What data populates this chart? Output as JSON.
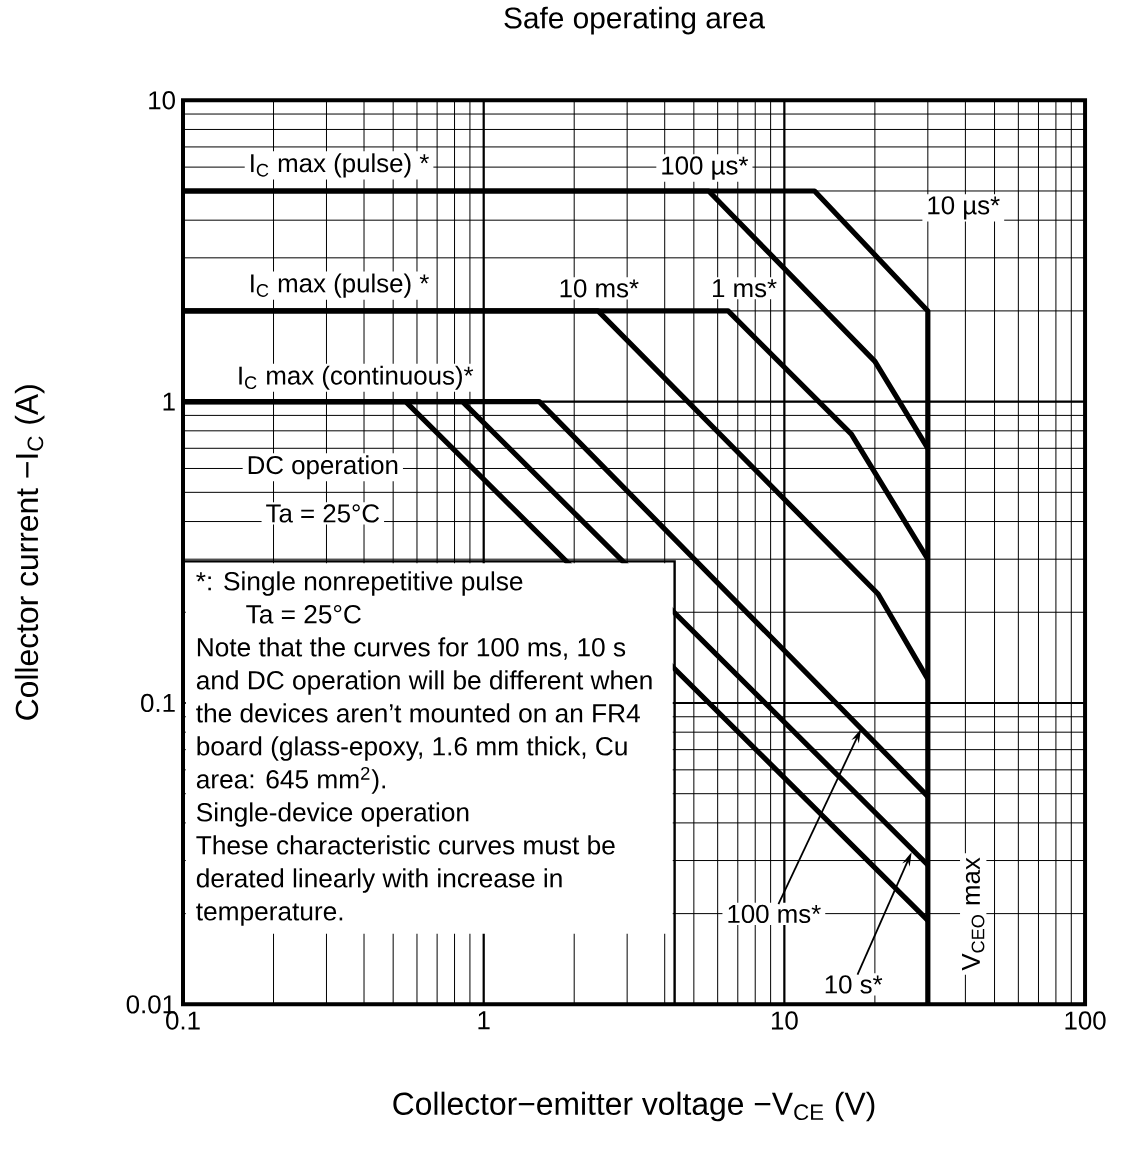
{
  "chart_data": {
    "type": "line",
    "title": "Safe operating area",
    "xlabel": "Collector−emitter voltage   −V$_{CE}$   (V)",
    "ylabel": "Collector current   −I$_{C}$   (A)",
    "log": "xy",
    "grid": true,
    "xlim": [
      0.1,
      100
    ],
    "ylim": [
      0.01,
      10
    ],
    "xticks": [
      0.1,
      1,
      10,
      100
    ],
    "yticks": [
      0.01,
      0.1,
      1,
      10
    ],
    "series": [
      {
        "name": "10 µs*",
        "color": "#000000",
        "x": [
          0.1,
          12.6,
          30,
          30
        ],
        "values": [
          5,
          5,
          2,
          0.01
        ]
      },
      {
        "name": "100 µs*",
        "color": "#000000",
        "x": [
          0.1,
          5.6,
          20,
          30
        ],
        "values": [
          5,
          5,
          1.36,
          0.7
        ]
      },
      {
        "name": "1 ms*",
        "color": "#000000",
        "x": [
          0.1,
          6.5,
          16.7,
          30
        ],
        "values": [
          2,
          2,
          0.78,
          0.3
        ]
      },
      {
        "name": "10 ms*",
        "color": "#000000",
        "x": [
          0.1,
          2.4,
          20.5,
          30
        ],
        "values": [
          2,
          2,
          0.23,
          0.12
        ]
      },
      {
        "color": "#000000",
        "x": [
          0.1,
          1.53,
          30
        ],
        "values": [
          1,
          1,
          0.049
        ]
      },
      {
        "color": "#000000",
        "x": [
          0.1,
          0.85,
          30
        ],
        "values": [
          1,
          1,
          0.029
        ]
      },
      {
        "name": "DC operation",
        "color": "#000000",
        "x": [
          0.1,
          0.55,
          30
        ],
        "values": [
          1,
          1,
          0.019
        ]
      }
    ],
    "annotations": [
      "I$_{C}$ max (pulse) *",
      "I$_{C}$ max (pulse) *",
      "I$_{C}$ max (continuous)*",
      "Ta = 25°C",
      "*:  Single nonrepetitive pulse",
      "Ta = 25°C",
      "Note that the curves for 100 ms, 10 s and DC operation will be different when the devices aren’t mounted on an FR4 board (glass-epoxy, 1.6 mm thick, Cu area: 645 mm$^{2}$).",
      "Single-device operation",
      "These characteristic curves must be derated linearly with increase in temperature.",
      {
        "text": "100 ms*",
        "x": 18,
        "y": 0.082
      },
      {
        "text": "10 s*",
        "x": 26.5,
        "y": 0.032
      },
      "V$_{CEO}$ max"
    ]
  }
}
